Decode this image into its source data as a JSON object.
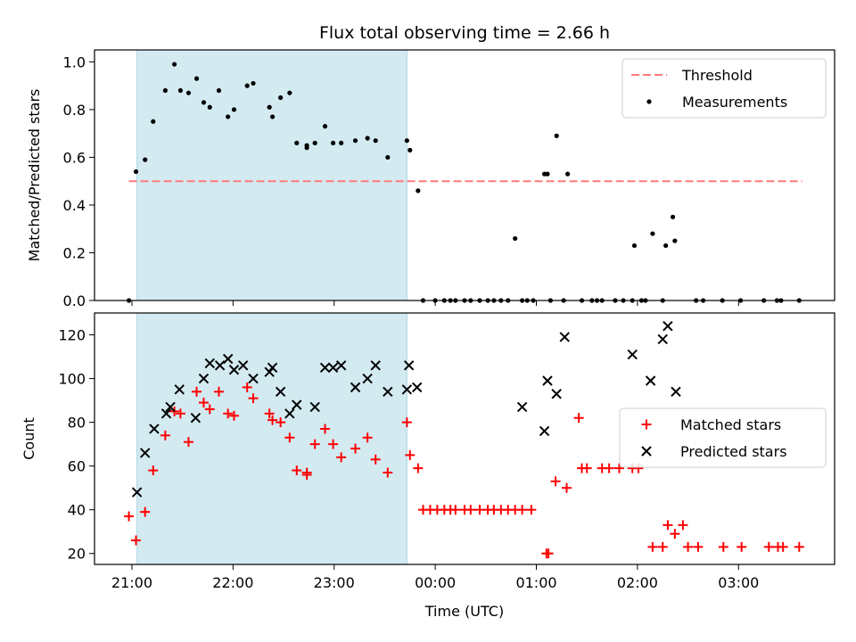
{
  "chart_data": {
    "title": "Flux total observing time = 2.66 h",
    "xlabel": "Time (UTC)",
    "x_unit": "hours since 21:00 UTC",
    "xlim": [
      -0.37,
      6.95
    ],
    "xticks": [
      {
        "v": 0,
        "label": "21:00"
      },
      {
        "v": 1,
        "label": "22:00"
      },
      {
        "v": 2,
        "label": "23:00"
      },
      {
        "v": 3,
        "label": "00:00"
      },
      {
        "v": 4,
        "label": "01:00"
      },
      {
        "v": 5,
        "label": "02:00"
      },
      {
        "v": 6,
        "label": "03:00"
      }
    ],
    "shaded_interval": {
      "x0": 0.05,
      "x1": 2.72,
      "color": "#d3eaf1"
    },
    "top_panel": {
      "type": "scatter",
      "ylabel": "Matched/Predicted stars",
      "ylim": [
        0,
        1.05
      ],
      "yticks": [
        {
          "v": 0.0,
          "label": "0.0"
        },
        {
          "v": 0.2,
          "label": "0.2"
        },
        {
          "v": 0.4,
          "label": "0.4"
        },
        {
          "v": 0.6,
          "label": "0.6"
        },
        {
          "v": 0.8,
          "label": "0.8"
        },
        {
          "v": 1.0,
          "label": "1.0"
        }
      ],
      "threshold": {
        "name": "Threshold",
        "value": 0.5,
        "x0": -0.03,
        "x1": 6.63,
        "color": "#ff7b7b"
      },
      "series_name": "Measurements",
      "color": "#000000",
      "legend_position": "top-right",
      "x": [
        -0.03,
        0.04,
        0.13,
        0.21,
        0.33,
        0.42,
        0.48,
        0.56,
        0.64,
        0.71,
        0.77,
        0.86,
        0.95,
        1.01,
        1.14,
        1.2,
        1.36,
        1.39,
        1.47,
        1.56,
        1.63,
        1.73,
        1.73,
        1.81,
        1.91,
        1.99,
        2.07,
        2.21,
        2.33,
        2.41,
        2.53,
        2.72,
        2.75,
        2.83,
        2.88,
        3.0,
        3.09,
        3.15,
        3.2,
        3.29,
        3.35,
        3.44,
        3.52,
        3.58,
        3.65,
        3.72,
        3.79,
        3.86,
        3.91,
        3.97,
        4.08,
        4.11,
        4.14,
        4.2,
        4.27,
        4.31,
        4.45,
        4.55,
        4.6,
        4.65,
        4.78,
        4.86,
        4.95,
        4.97,
        5.04,
        5.08,
        5.15,
        5.25,
        5.28,
        5.35,
        5.37,
        5.58,
        5.65,
        5.84,
        6.02,
        6.25,
        6.38,
        6.42,
        6.6
      ],
      "y": [
        0.0,
        0.54,
        0.59,
        0.75,
        0.88,
        0.99,
        0.88,
        0.87,
        0.93,
        0.83,
        0.81,
        0.88,
        0.77,
        0.8,
        0.9,
        0.91,
        0.81,
        0.77,
        0.85,
        0.87,
        0.66,
        0.65,
        0.64,
        0.66,
        0.73,
        0.66,
        0.66,
        0.67,
        0.68,
        0.67,
        0.6,
        0.67,
        0.63,
        0.46,
        0.0,
        0.0,
        0.0,
        0.0,
        0.0,
        0.0,
        0.0,
        0.0,
        0.0,
        0.0,
        0.0,
        0.0,
        0.26,
        0.0,
        0.0,
        0.0,
        0.53,
        0.53,
        0.0,
        0.69,
        0.0,
        0.53,
        0.0,
        0.0,
        0.0,
        0.0,
        0.0,
        0.0,
        0.0,
        0.23,
        0.0,
        0.0,
        0.28,
        0.0,
        0.23,
        0.35,
        0.25,
        0.0,
        0.0,
        0.0,
        0.0,
        0.0,
        0.0,
        0.0,
        0.0
      ]
    },
    "bottom_panel": {
      "type": "scatter",
      "ylabel": "Count",
      "ylim": [
        15,
        130
      ],
      "yticks": [
        {
          "v": 20,
          "label": "20"
        },
        {
          "v": 40,
          "label": "40"
        },
        {
          "v": 60,
          "label": "60"
        },
        {
          "v": 80,
          "label": "80"
        },
        {
          "v": 100,
          "label": "100"
        },
        {
          "v": 120,
          "label": "120"
        }
      ],
      "legend_position": "center-right",
      "series": [
        {
          "name": "Matched stars",
          "marker": "plus",
          "color": "#ff0000",
          "x": [
            -0.03,
            0.04,
            0.13,
            0.21,
            0.33,
            0.42,
            0.48,
            0.56,
            0.64,
            0.71,
            0.77,
            0.86,
            0.95,
            1.01,
            1.14,
            1.2,
            1.36,
            1.39,
            1.47,
            1.56,
            1.63,
            1.73,
            1.73,
            1.81,
            1.91,
            1.99,
            2.07,
            2.21,
            2.33,
            2.41,
            2.53,
            2.72,
            2.75,
            2.83,
            2.88,
            2.95,
            3.02,
            3.09,
            3.15,
            3.2,
            3.29,
            3.35,
            3.44,
            3.52,
            3.58,
            3.65,
            3.72,
            3.79,
            3.86,
            3.95,
            4.1,
            4.12,
            4.19,
            4.3,
            4.42,
            4.45,
            4.5,
            4.65,
            4.72,
            4.82,
            4.95,
            5.01,
            5.15,
            5.25,
            5.3,
            5.37,
            5.45,
            5.5,
            5.6,
            5.85,
            6.03,
            6.3,
            6.39,
            6.44,
            6.6
          ],
          "y": [
            37,
            26,
            39,
            58,
            74,
            85,
            84,
            71,
            94,
            89,
            86,
            94,
            84,
            83,
            96,
            91,
            84,
            81,
            80,
            73,
            58,
            57,
            56,
            70,
            77,
            70,
            64,
            68,
            73,
            63,
            57,
            80,
            65,
            59,
            40,
            40,
            40,
            40,
            40,
            40,
            40,
            40,
            40,
            40,
            40,
            40,
            40,
            40,
            40,
            40,
            20,
            20,
            53,
            50,
            82,
            59,
            59,
            59,
            59,
            59,
            59,
            59,
            23,
            23,
            33,
            29,
            33,
            23,
            23,
            23,
            23,
            23,
            23,
            23,
            23
          ]
        },
        {
          "name": "Predicted stars",
          "marker": "cross",
          "color": "#000000",
          "x": [
            0.05,
            0.13,
            0.22,
            0.34,
            0.38,
            0.47,
            0.63,
            0.71,
            0.77,
            0.87,
            0.95,
            1.01,
            1.1,
            1.2,
            1.36,
            1.39,
            1.47,
            1.56,
            1.63,
            1.81,
            1.91,
            1.99,
            2.07,
            2.21,
            2.33,
            2.41,
            2.53,
            2.72,
            2.74,
            2.82,
            3.86,
            4.08,
            4.11,
            4.2,
            4.28,
            4.95,
            5.13,
            5.25,
            5.3,
            5.38
          ],
          "y": [
            48,
            66,
            77,
            84,
            87,
            95,
            82,
            100,
            107,
            106,
            109,
            104,
            106,
            100,
            103,
            105,
            94,
            84,
            88,
            87,
            105,
            105,
            106,
            96,
            100,
            106,
            94,
            95,
            106,
            96,
            87,
            76,
            99,
            93,
            119,
            111,
            99,
            118,
            124,
            94
          ]
        }
      ]
    }
  }
}
